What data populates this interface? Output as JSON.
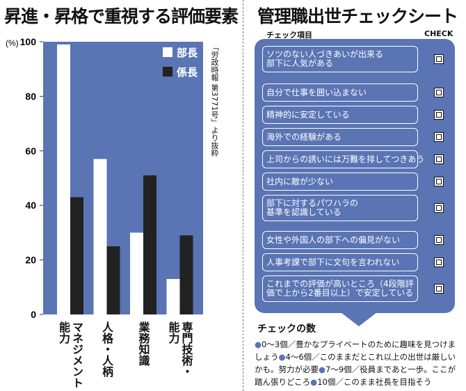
{
  "left_title": "昇進・昇格で重視する評価要素",
  "right_title": "管理職出世チェックシート",
  "chart_data": {
    "type": "bar",
    "title": "昇進・昇格で重視する評価要素",
    "ylabel": "(%)",
    "ylim": [
      0,
      100
    ],
    "yticks": [
      0,
      20,
      40,
      60,
      80,
      100
    ],
    "categories": [
      "マネジメント能力",
      "人格・人柄",
      "業務知識",
      "専門技術・能力"
    ],
    "category_label_lines": [
      [
        "マネジメント",
        "能力"
      ],
      [
        "人格・人柄"
      ],
      [
        "業務知識"
      ],
      [
        "専門技術・",
        "能力"
      ]
    ],
    "series": [
      {
        "name": "部長",
        "color": "#ffffff",
        "values": [
          99,
          57,
          30,
          13
        ]
      },
      {
        "name": "係長",
        "color": "#222222",
        "values": [
          43,
          25,
          51,
          29
        ]
      }
    ],
    "plot_bg": "#5a74b4",
    "legend_position": "top-right",
    "source": "「労政時報 第3771号」より抜粋"
  },
  "checksheet": {
    "col_item": "チェック項目",
    "col_check": "CHECK",
    "panel_color": "#5a74b4",
    "items": [
      "ソツのない人づきあいが出来る\n部下に人気がある",
      "自分で仕事を囲い込まない",
      "精神的に安定している",
      "海外での経験がある",
      "上司からの誘いには万難を排してつきあう",
      "社内に敵が少ない",
      "部下に対するパワハラの\n基準を認識している",
      "女性や外国人の部下への偏見がない",
      "人事考課で部下に文句を言われない",
      "これまでの評価が高いところ（4段階評\n価で上から2番目以上）で安定している"
    ]
  },
  "check_count": {
    "title": "チェックの数",
    "bullet": "●",
    "levels": [
      {
        "range": "0～3個",
        "text": "／豊かなプライベートのために趣味を見つけましょう"
      },
      {
        "range": "4～6個",
        "text": "／このままだとこれ以上の出世は厳しいかも。努力が必要"
      },
      {
        "range": "7～9個",
        "text": "／役員まであと一歩。ここが踏ん張りどころ"
      },
      {
        "range": "10個",
        "text": "／このまま社長を目指そう"
      }
    ]
  }
}
